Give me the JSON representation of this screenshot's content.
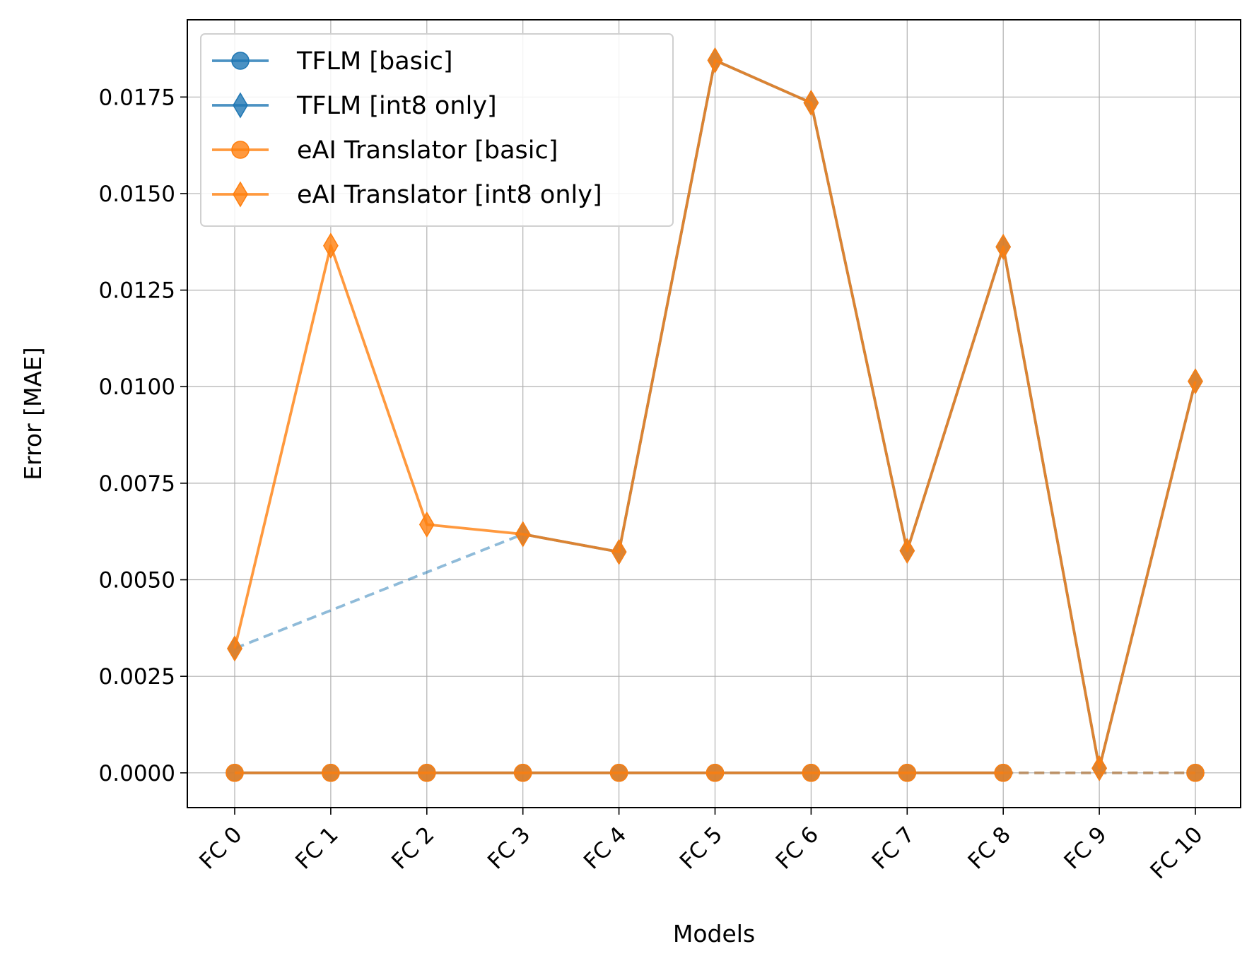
{
  "chart_data": {
    "type": "line",
    "xlabel": "Models",
    "ylabel": "Error [MAE]",
    "categories": [
      "FC 0",
      "FC 1",
      "FC 2",
      "FC 3",
      "FC 4",
      "FC 5",
      "FC 6",
      "FC 7",
      "FC 8",
      "FC 9",
      "FC 10"
    ],
    "ylim": [
      -0.0009,
      0.0195
    ],
    "yticks": [
      "0.0000",
      "0.0025",
      "0.0050",
      "0.0075",
      "0.0100",
      "0.0125",
      "0.0150",
      "0.0175"
    ],
    "grid": true,
    "legend_position": "top-left",
    "series": [
      {
        "name": "TFLM [basic]",
        "marker": "circle",
        "color": "#1f77b4",
        "values": [
          0.0,
          0.0,
          0.0,
          0.0,
          0.0,
          0.0,
          0.0,
          0.0,
          0.0,
          null,
          0.0
        ]
      },
      {
        "name": "TFLM [int8 only]",
        "marker": "diamond",
        "color": "#1f77b4",
        "values": [
          0.00322,
          null,
          null,
          0.00618,
          0.00572,
          0.01845,
          0.01735,
          0.00575,
          0.01362,
          0.00012,
          0.01014
        ]
      },
      {
        "name": "eAI Translator [basic]",
        "marker": "circle",
        "color": "#ff7f0e",
        "values": [
          0.0,
          0.0,
          0.0,
          0.0,
          0.0,
          0.0,
          0.0,
          0.0,
          0.0,
          null,
          0.0
        ]
      },
      {
        "name": "eAI Translator [int8 only]",
        "marker": "diamond",
        "color": "#ff7f0e",
        "values": [
          0.00322,
          0.01365,
          0.00643,
          0.00618,
          0.00572,
          0.01845,
          0.01735,
          0.00575,
          0.01362,
          0.00012,
          0.01014
        ]
      }
    ]
  }
}
